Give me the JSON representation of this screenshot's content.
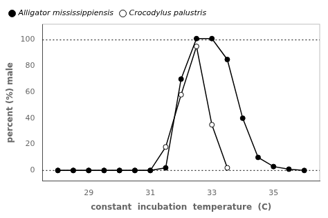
{
  "chart_data": {
    "type": "line",
    "xlabel": "constant  incubation  temperature  (C)",
    "ylabel": "percent (%) male",
    "series": [
      {
        "name": "Alligator mississippiensis",
        "color": "#000000",
        "marker": "filled_circle",
        "x": [
          28,
          28.5,
          29,
          29.5,
          30,
          30.5,
          31,
          31.5,
          32,
          32.5,
          33,
          33.5,
          34,
          34.5,
          35,
          35.5,
          36
        ],
        "values": [
          0,
          0,
          0,
          0,
          0,
          0,
          0,
          2,
          70,
          101,
          101,
          85,
          40,
          10,
          3,
          1,
          0
        ]
      },
      {
        "name": "Crocodylus palustris",
        "color": "#000000",
        "marker": "open_circle",
        "x": [
          28,
          28.5,
          29,
          29.5,
          30,
          30.5,
          31,
          31.5,
          32,
          32.5,
          33,
          33.5
        ],
        "values": [
          0,
          0,
          0,
          0,
          0,
          0,
          0,
          18,
          58,
          95,
          35,
          2
        ]
      }
    ],
    "hlines": [
      0,
      100
    ],
    "xlim": [
      27.5,
      36.5
    ],
    "ylim": [
      -8,
      112
    ],
    "xticks": [
      29,
      31,
      33,
      35
    ],
    "yticks": [
      0,
      20,
      40,
      60,
      80,
      100
    ],
    "grid": false,
    "legend": "upper left"
  }
}
